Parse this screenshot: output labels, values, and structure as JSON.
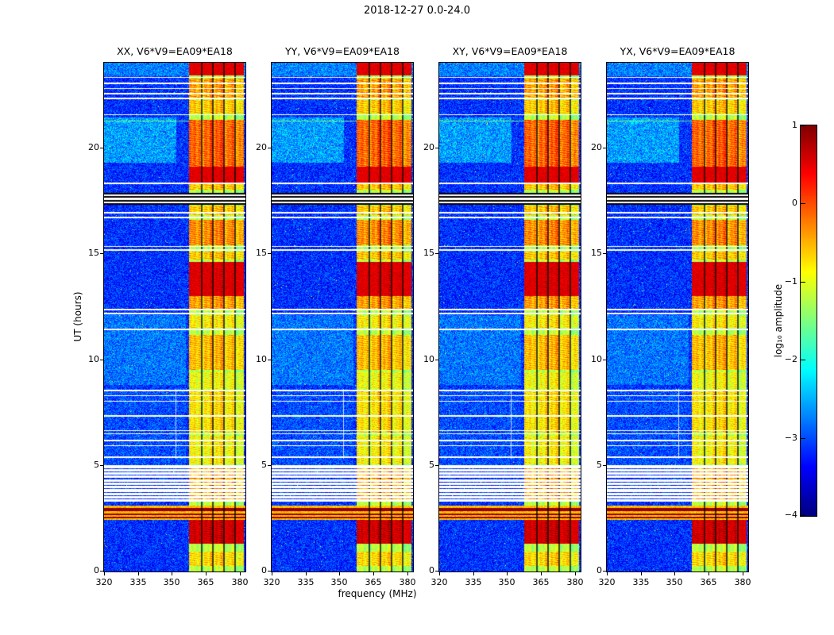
{
  "figure": {
    "title": "2018-12-27 0.0-24.0",
    "xlabel": "frequency (MHz)",
    "ylabel": "UT (hours)"
  },
  "chart_data": {
    "type": "heatmap",
    "title": "2018-12-27 0.0-24.0",
    "xlabel": "frequency (MHz)",
    "ylabel": "UT (hours)",
    "colormap": "jet",
    "x_range_mhz": [
      320,
      382.5
    ],
    "x_ticks": [
      320,
      335,
      350,
      365,
      380
    ],
    "x_tick_labels": [
      "320",
      "335",
      "350",
      "365",
      "380"
    ],
    "y_range_hours": [
      0,
      24
    ],
    "y_ticks": [
      0,
      5,
      10,
      15,
      20
    ],
    "y_tick_labels": [
      "0",
      "5",
      "10",
      "15",
      "20"
    ],
    "panels": [
      {
        "pol": "XX",
        "title": "XX, V6*V9=EA09*EA18"
      },
      {
        "pol": "YY",
        "title": "YY, V6*V9=EA09*EA18"
      },
      {
        "pol": "XY",
        "title": "XY, V6*V9=EA09*EA18"
      },
      {
        "pol": "YX",
        "title": "YX, V6*V9=EA09*EA18"
      }
    ],
    "colorbar": {
      "label": "log₁₀ amplitude",
      "range": [
        -4,
        1
      ],
      "ticks": [
        1,
        0,
        -1,
        -2,
        -3,
        -4
      ],
      "tick_labels": [
        "1",
        "0",
        "−1",
        "−2",
        "−3",
        "−4"
      ]
    },
    "features": {
      "background_level_log10": -3.2,
      "bright_band_mhz": [
        357.5,
        381.8
      ],
      "bright_band_level_log10": -1.3,
      "dark_vertical_lines_mhz": [
        363.3,
        368.2,
        373.1,
        378.0
      ],
      "faint_white_vertical_line": {
        "mhz": 351.8,
        "t_hours": [
          5.3,
          8.6
        ]
      },
      "data_gap_t_hours": [
        3.3,
        5.02
      ],
      "gap_data_line_t_hours": [
        3.42,
        3.58,
        3.74,
        3.9,
        4.06,
        4.22,
        4.38,
        4.54,
        4.7,
        4.86
      ],
      "white_gap_rows_t_hours": [
        [
          5.36,
          5.42
        ],
        [
          5.9,
          5.96
        ],
        [
          6.14,
          6.2
        ],
        [
          6.46,
          6.52
        ],
        [
          6.62,
          6.68
        ],
        [
          7.3,
          7.36
        ],
        [
          8.0,
          8.06
        ],
        [
          8.26,
          8.32
        ],
        [
          8.5,
          8.56
        ],
        [
          11.38,
          11.44
        ],
        [
          12.14,
          12.2
        ],
        [
          12.32,
          12.38
        ],
        [
          15.14,
          15.2
        ],
        [
          15.3,
          15.36
        ],
        [
          16.68,
          16.74
        ],
        [
          16.9,
          16.96
        ],
        [
          17.38,
          17.46
        ],
        [
          17.54,
          17.62
        ],
        [
          17.7,
          17.78
        ],
        [
          18.28,
          18.34
        ],
        [
          21.52,
          21.58
        ],
        [
          22.28,
          22.34
        ],
        [
          22.52,
          22.58
        ],
        [
          22.76,
          22.82
        ],
        [
          23.0,
          23.06
        ],
        [
          23.28,
          23.34
        ]
      ],
      "black_rows_t_hours": [
        [
          17.3,
          17.38
        ],
        [
          17.46,
          17.54
        ],
        [
          17.62,
          17.7
        ],
        [
          17.78,
          17.86
        ]
      ],
      "broadband_interference_t_hours": [
        2.42,
        3.12
      ],
      "broadband_red_lines_t_hours": [
        [
          2.5,
          2.58
        ],
        [
          2.66,
          2.74
        ],
        [
          2.86,
          2.98
        ]
      ],
      "thin_green_row_t_hours": 21.25,
      "band_hot_blocks_t_hours": [
        [
          0.25,
          0.95,
          0.5
        ],
        [
          1.3,
          2.45,
          1.7
        ],
        [
          3.3,
          5.0,
          0.8
        ],
        [
          5.05,
          6.4,
          0.35
        ],
        [
          6.55,
          8.5,
          0.45
        ],
        [
          8.6,
          9.4,
          0.3
        ],
        [
          9.5,
          11.15,
          0.65
        ],
        [
          11.5,
          12.1,
          0.4
        ],
        [
          12.3,
          13.0,
          0.8
        ],
        [
          13.0,
          14.6,
          1.5
        ],
        [
          14.7,
          15.1,
          0.6
        ],
        [
          15.4,
          16.6,
          0.9
        ],
        [
          16.8,
          17.25,
          0.6
        ],
        [
          18.0,
          18.3,
          0.6
        ],
        [
          18.35,
          19.1,
          1.3
        ],
        [
          19.1,
          21.3,
          1.1
        ],
        [
          21.6,
          22.25,
          0.6
        ],
        [
          22.35,
          23.25,
          0.8
        ],
        [
          23.4,
          24.0,
          1.3
        ]
      ],
      "background_patches": [
        {
          "t": [
            8.8,
            12.1
          ],
          "f_max": 356,
          "boost": 0.35
        },
        {
          "t": [
            19.3,
            21.4
          ],
          "f_max": 352,
          "boost": 0.55
        },
        {
          "t": [
            23.35,
            24.0
          ],
          "f_max": 383,
          "boost": 0.4
        },
        {
          "t": [
            5.0,
            8.6
          ],
          "f_max": 356,
          "boost": 0.15
        }
      ]
    }
  }
}
